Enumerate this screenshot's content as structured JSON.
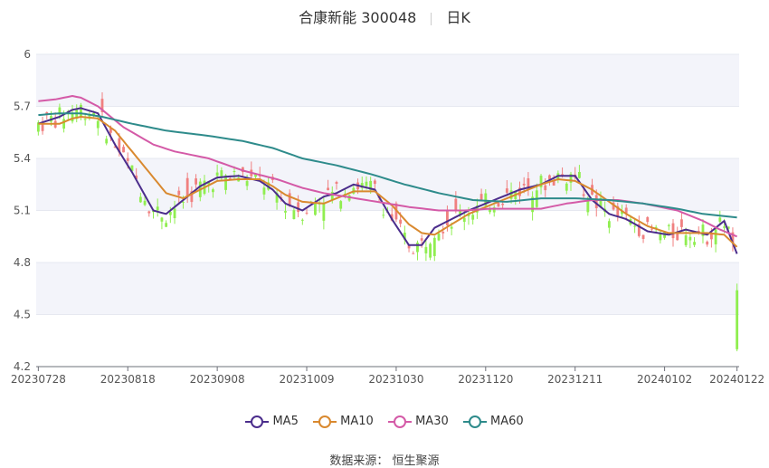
{
  "header": {
    "title": "合康新能 300048",
    "period": "日K"
  },
  "legend": [
    {
      "label": "MA5",
      "color": "#4b2d8c"
    },
    {
      "label": "MA10",
      "color": "#d9892f"
    },
    {
      "label": "MA30",
      "color": "#d45aa7"
    },
    {
      "label": "MA60",
      "color": "#2e8b8b"
    }
  ],
  "source": "数据来源：  恒生聚源",
  "colors": {
    "up": "#f08080",
    "down": "#90ee50"
  },
  "chart_data": {
    "type": "candlestick",
    "ylim": [
      4.2,
      6.0
    ],
    "yticks": [
      "4.2",
      "4.5",
      "4.8",
      "5.1",
      "5.4",
      "5.7",
      "6"
    ],
    "xticks": [
      "20230728",
      "20230818",
      "20230908",
      "20231009",
      "20231030",
      "20231120",
      "20231211",
      "20240102",
      "20240122"
    ],
    "ma_series": [
      {
        "name": "MA5",
        "x": [
          0,
          5,
          8,
          10,
          14,
          18,
          22,
          27,
          30,
          34,
          38,
          42,
          47,
          52,
          55,
          58,
          62,
          67,
          70,
          74,
          79,
          83,
          87,
          90,
          93,
          97,
          101,
          105,
          109,
          113,
          118,
          122,
          126,
          130,
          134,
          138,
          143,
          148,
          152,
          157,
          161,
          164
        ],
        "values": [
          5.6,
          5.64,
          5.68,
          5.69,
          5.66,
          5.48,
          5.32,
          5.1,
          5.08,
          5.16,
          5.24,
          5.29,
          5.3,
          5.27,
          5.22,
          5.14,
          5.1,
          5.18,
          5.2,
          5.25,
          5.22,
          5.05,
          4.9,
          4.9,
          5.0,
          5.05,
          5.1,
          5.14,
          5.18,
          5.22,
          5.25,
          5.3,
          5.3,
          5.16,
          5.08,
          5.05,
          4.98,
          4.96,
          4.99,
          4.96,
          5.04,
          4.85
        ]
      },
      {
        "name": "MA10",
        "x": [
          0,
          5,
          8,
          10,
          14,
          18,
          22,
          27,
          30,
          34,
          38,
          42,
          47,
          52,
          55,
          58,
          62,
          67,
          70,
          74,
          79,
          83,
          87,
          90,
          93,
          97,
          101,
          105,
          109,
          113,
          118,
          122,
          126,
          130,
          134,
          138,
          143,
          148,
          152,
          157,
          161,
          164
        ],
        "values": [
          5.6,
          5.6,
          5.63,
          5.64,
          5.63,
          5.56,
          5.44,
          5.29,
          5.2,
          5.17,
          5.22,
          5.27,
          5.28,
          5.28,
          5.24,
          5.19,
          5.15,
          5.14,
          5.17,
          5.21,
          5.21,
          5.13,
          5.02,
          4.97,
          4.96,
          5.02,
          5.08,
          5.12,
          5.16,
          5.2,
          5.25,
          5.28,
          5.27,
          5.22,
          5.15,
          5.08,
          5.01,
          4.97,
          4.97,
          4.97,
          4.96,
          4.89
        ]
      },
      {
        "name": "MA30",
        "x": [
          0,
          4,
          8,
          10,
          14,
          20,
          27,
          32,
          40,
          48,
          56,
          62,
          67,
          72,
          77,
          82,
          87,
          94,
          100,
          106,
          112,
          118,
          124,
          130,
          136,
          142,
          150,
          156,
          160,
          164
        ],
        "values": [
          5.73,
          5.74,
          5.76,
          5.75,
          5.7,
          5.58,
          5.48,
          5.44,
          5.4,
          5.33,
          5.28,
          5.23,
          5.2,
          5.18,
          5.16,
          5.14,
          5.12,
          5.1,
          5.1,
          5.11,
          5.11,
          5.11,
          5.14,
          5.16,
          5.16,
          5.14,
          5.1,
          5.04,
          4.99,
          4.95
        ]
      },
      {
        "name": "MA60",
        "x": [
          0,
          5,
          10,
          15,
          22,
          30,
          40,
          48,
          55,
          62,
          70,
          78,
          86,
          94,
          102,
          110,
          118,
          126,
          134,
          142,
          150,
          156,
          160,
          164
        ],
        "values": [
          5.65,
          5.66,
          5.66,
          5.64,
          5.6,
          5.56,
          5.53,
          5.5,
          5.46,
          5.4,
          5.36,
          5.31,
          5.25,
          5.2,
          5.16,
          5.15,
          5.17,
          5.17,
          5.16,
          5.14,
          5.11,
          5.08,
          5.07,
          5.06
        ]
      }
    ]
  }
}
